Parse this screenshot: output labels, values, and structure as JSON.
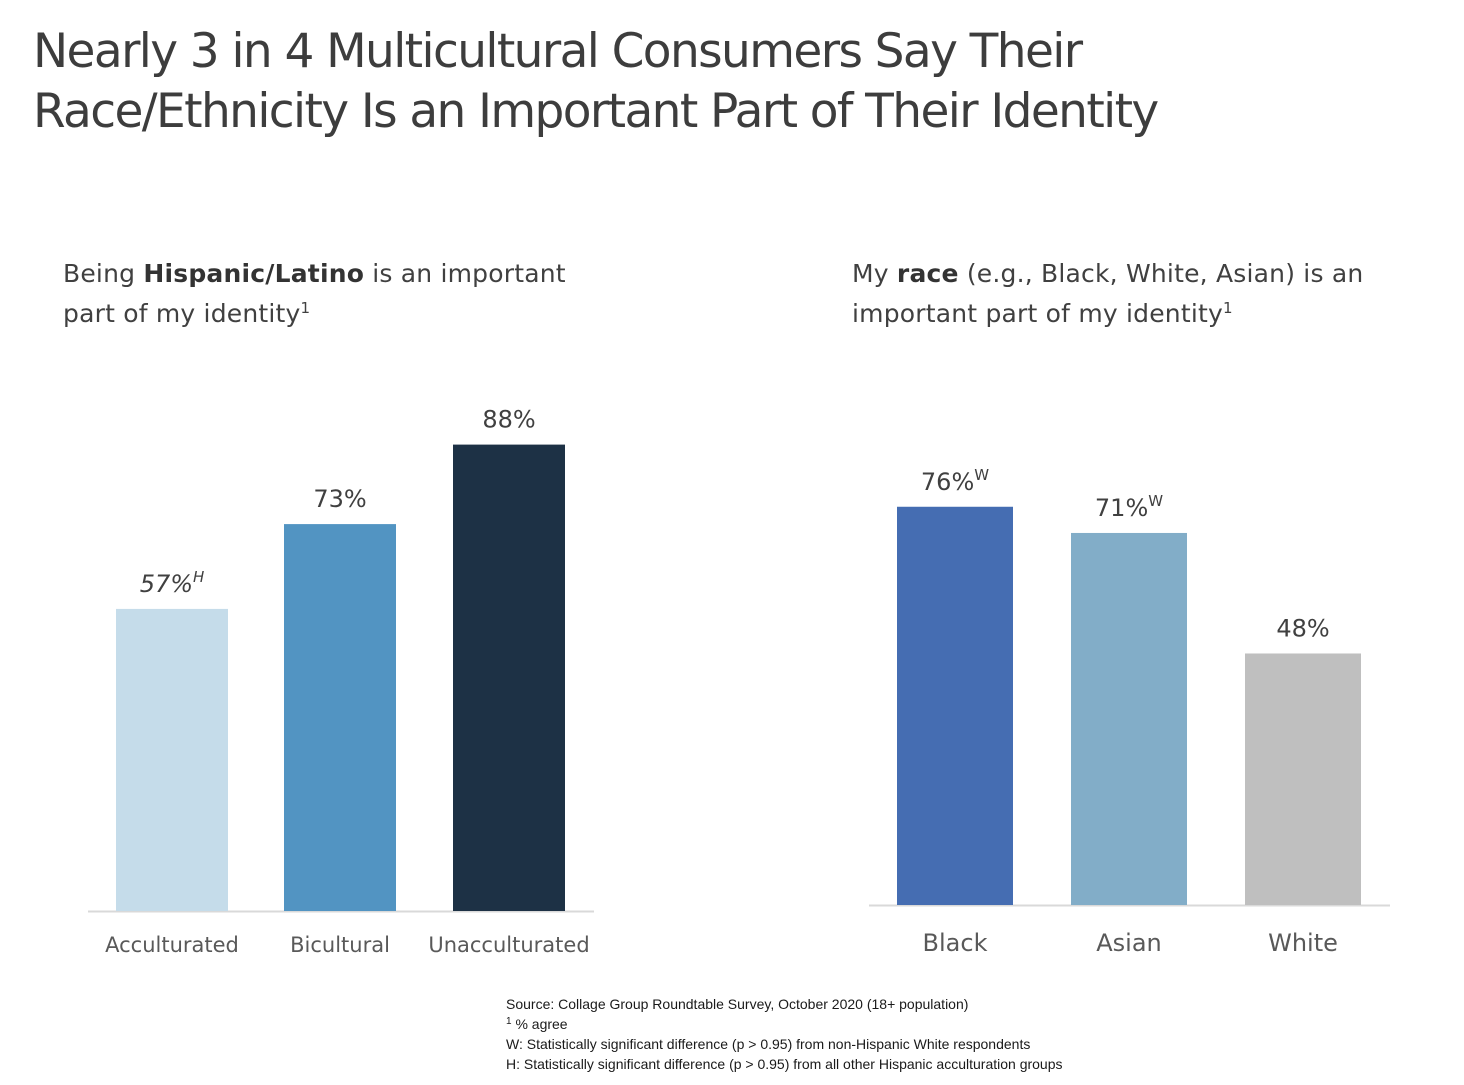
{
  "title_lines": [
    "Nearly 3 in 4 Multicultural Consumers Say Their",
    "Race/Ethnicity Is an Important Part of Their Identity"
  ],
  "left_subtitle": {
    "pre": "Being ",
    "bold": "Hispanic/Latino",
    "post": " is an important",
    "line2": "part of my identity",
    "sup": "1"
  },
  "right_subtitle": {
    "pre": "My ",
    "bold": "race",
    "post": " (e.g., Black, White, Asian) is an",
    "line2": "important part of my identity",
    "sup": "1"
  },
  "footnotes": {
    "source": "Source: Collage Group Roundtable Survey, October 2020 (18+ population)",
    "note1_marker": "1",
    "note1": " % agree",
    "note_w": "W: Statistically significant difference (p > 0.95) from non-Hispanic White respondents",
    "note_h": "H: Statistically significant difference (p > 0.95) from all other Hispanic acculturation groups"
  },
  "chart_data": [
    {
      "type": "bar",
      "title": "Being Hispanic/Latino is an important part of my identity",
      "categories": [
        "Acculturated",
        "Bicultural",
        "Unacculturated"
      ],
      "values": [
        57,
        73,
        88
      ],
      "labels": [
        "57%",
        "73%",
        "88%"
      ],
      "label_superscripts": [
        "H",
        "",
        ""
      ],
      "label_italic": [
        true,
        false,
        false
      ],
      "colors": [
        "#c5dcea",
        "#5294c2",
        "#1d3145"
      ],
      "ylim": [
        0,
        100
      ],
      "grid": false
    },
    {
      "type": "bar",
      "title": "My race (e.g., Black, White, Asian) is an important part of my identity",
      "categories": [
        "Black",
        "Asian",
        "White"
      ],
      "values": [
        76,
        71,
        48
      ],
      "labels": [
        "76%",
        "71%",
        "48%"
      ],
      "label_superscripts": [
        "W",
        "W",
        ""
      ],
      "label_italic": [
        false,
        false,
        false
      ],
      "colors": [
        "#456db2",
        "#82adc8",
        "#bfbfbf"
      ],
      "ylim": [
        0,
        100
      ],
      "grid": false
    }
  ]
}
